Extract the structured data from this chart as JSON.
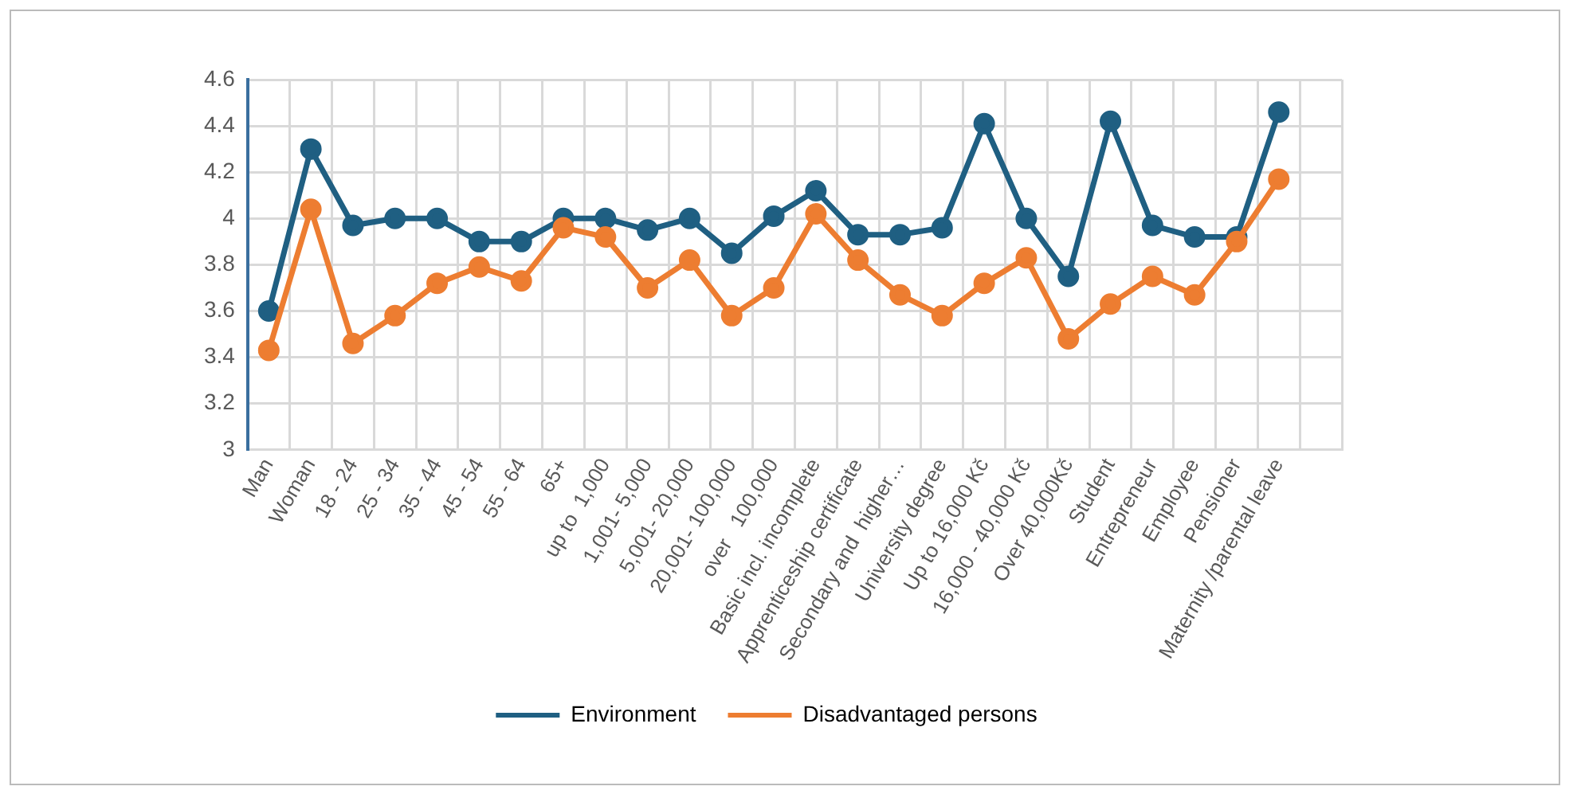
{
  "chart_data": {
    "type": "line",
    "categories": [
      "Man",
      "Woman",
      "18 - 24",
      "25 - 34",
      "35 - 44",
      "45 - 54",
      "55 - 64",
      "65+",
      "up to  1,000",
      "1,001- 5,000",
      "5,001- 20,000",
      "20,001- 100,000",
      "over   100,000",
      "Basic incl. incomplete",
      "Apprenticeship certificate",
      "Secondary and  higher…",
      "University degree",
      "Up to 16,000 Kč",
      "16,000 - 40,000 Kč",
      "Over 40,000Kč",
      "Student",
      "Entrepreneur",
      "Employee",
      "Pensioner",
      "Maternity /parental leave",
      null
    ],
    "series": [
      {
        "name": "Environment",
        "color": "#1f5f82",
        "values": [
          3.6,
          4.3,
          3.97,
          4.0,
          4.0,
          3.9,
          3.9,
          4.0,
          4.0,
          3.95,
          4.0,
          3.85,
          4.01,
          4.12,
          3.93,
          3.93,
          3.96,
          4.41,
          4.0,
          3.75,
          4.42,
          3.97,
          3.92,
          3.92,
          4.46,
          null
        ]
      },
      {
        "name": "Disadvantaged persons",
        "color": "#ed7d31",
        "values": [
          3.43,
          4.04,
          3.46,
          3.58,
          3.72,
          3.79,
          3.73,
          3.96,
          3.92,
          3.7,
          3.82,
          3.58,
          3.7,
          4.02,
          3.82,
          3.67,
          3.58,
          3.72,
          3.83,
          3.48,
          3.63,
          3.75,
          3.67,
          3.9,
          4.17,
          null
        ]
      }
    ],
    "ylim": [
      3,
      4.6
    ],
    "yticks": [
      3,
      3.2,
      3.4,
      3.6,
      3.8,
      4,
      4.2,
      4.4,
      4.6
    ],
    "grid": true,
    "legend": "bottom",
    "marker": "circle",
    "line_style": "solid"
  }
}
